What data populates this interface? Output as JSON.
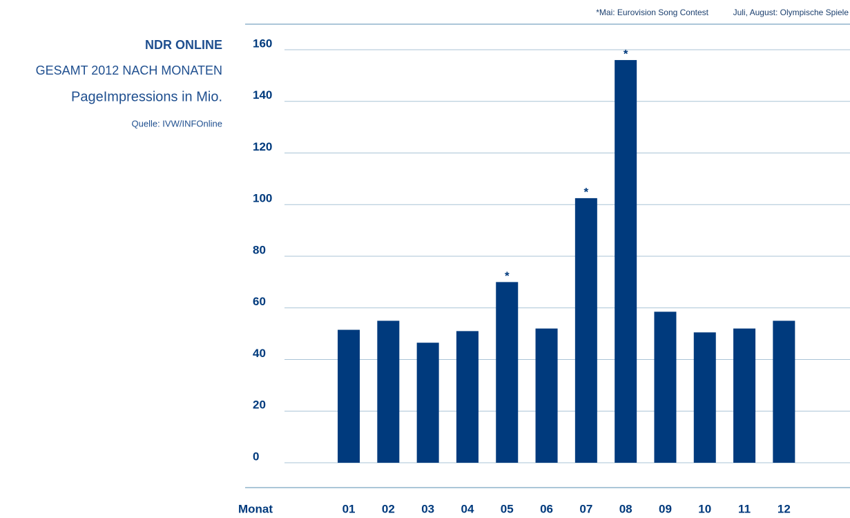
{
  "chart_data": {
    "type": "bar",
    "title": "NDR ONLINE",
    "subtitle": "GESAMT 2012 NACH MONATEN",
    "y_label": "PageImpressions in Mio.",
    "source": "Quelle: IVW/INFOnline",
    "notes": [
      "*Mai: Eurovision Song Contest",
      "Juli, August: Olympische Spiele"
    ],
    "x_label": "Monat",
    "categories": [
      "01",
      "02",
      "03",
      "04",
      "05",
      "06",
      "07",
      "08",
      "09",
      "10",
      "11",
      "12"
    ],
    "values": [
      51.5,
      55,
      46.5,
      51,
      70,
      52,
      102.5,
      156,
      58.5,
      50.5,
      52,
      55
    ],
    "bar_markers": [
      null,
      null,
      null,
      null,
      "*",
      null,
      "*",
      "*",
      null,
      null,
      null,
      null
    ],
    "color": "#003a7d",
    "ylim": [
      0,
      160
    ],
    "yticks": [
      0,
      20,
      40,
      60,
      80,
      100,
      120,
      140,
      160
    ],
    "grid": true
  }
}
